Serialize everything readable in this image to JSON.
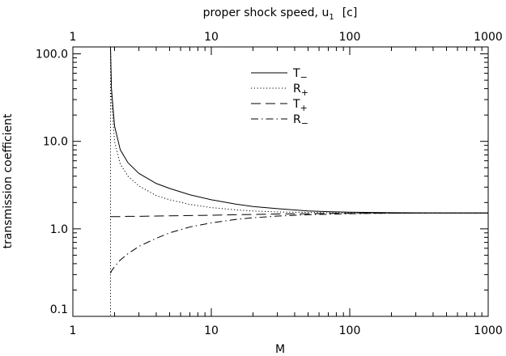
{
  "chart_data": {
    "type": "line",
    "xlabel": "M",
    "x2label": "proper shock speed,  u",
    "x2label_sub": "1",
    "x2label_unit": "[c]",
    "ylabel": "transmission coefficient",
    "x_scale": "log",
    "y_scale": "log",
    "xlim": [
      1,
      1000
    ],
    "ylim": [
      0.1,
      120
    ],
    "x_ticks": [
      "1",
      "10",
      "100",
      "1000"
    ],
    "x2_ticks": [
      "1",
      "10",
      "100",
      "1000"
    ],
    "y_ticks": [
      "0.1",
      "1.0",
      "10.0",
      "100.0"
    ],
    "legend_position": "top-center",
    "x": [
      1.87,
      1.9,
      2.0,
      2.2,
      2.5,
      3,
      4,
      5,
      7,
      10,
      15,
      20,
      30,
      50,
      70,
      100,
      200,
      500,
      1000
    ],
    "series": [
      {
        "name": "T",
        "sub": "−",
        "style": "solid",
        "values": [
          120,
          40,
          15,
          8.0,
          5.7,
          4.3,
          3.3,
          2.9,
          2.45,
          2.15,
          1.92,
          1.8,
          1.7,
          1.6,
          1.57,
          1.55,
          1.53,
          1.52,
          1.52
        ]
      },
      {
        "name": "R",
        "sub": "+",
        "style": "dotted",
        "values": [
          120,
          30,
          10,
          5.5,
          4.0,
          3.1,
          2.4,
          2.15,
          1.9,
          1.75,
          1.65,
          1.6,
          1.56,
          1.54,
          1.53,
          1.52,
          1.52,
          1.52,
          1.52
        ]
      },
      {
        "name": "T",
        "sub": "+",
        "style": "dashed",
        "values": [
          1.38,
          1.38,
          1.38,
          1.38,
          1.39,
          1.39,
          1.4,
          1.41,
          1.42,
          1.43,
          1.45,
          1.46,
          1.48,
          1.49,
          1.5,
          1.5,
          1.51,
          1.52,
          1.52
        ]
      },
      {
        "name": "R",
        "sub": "−",
        "style": "dashdot",
        "values": [
          0.31,
          0.33,
          0.37,
          0.44,
          0.52,
          0.63,
          0.78,
          0.9,
          1.05,
          1.17,
          1.28,
          1.34,
          1.4,
          1.45,
          1.47,
          1.49,
          1.51,
          1.52,
          1.52
        ]
      }
    ],
    "vertical_line": {
      "x": 1.87,
      "style": "dotted"
    }
  }
}
